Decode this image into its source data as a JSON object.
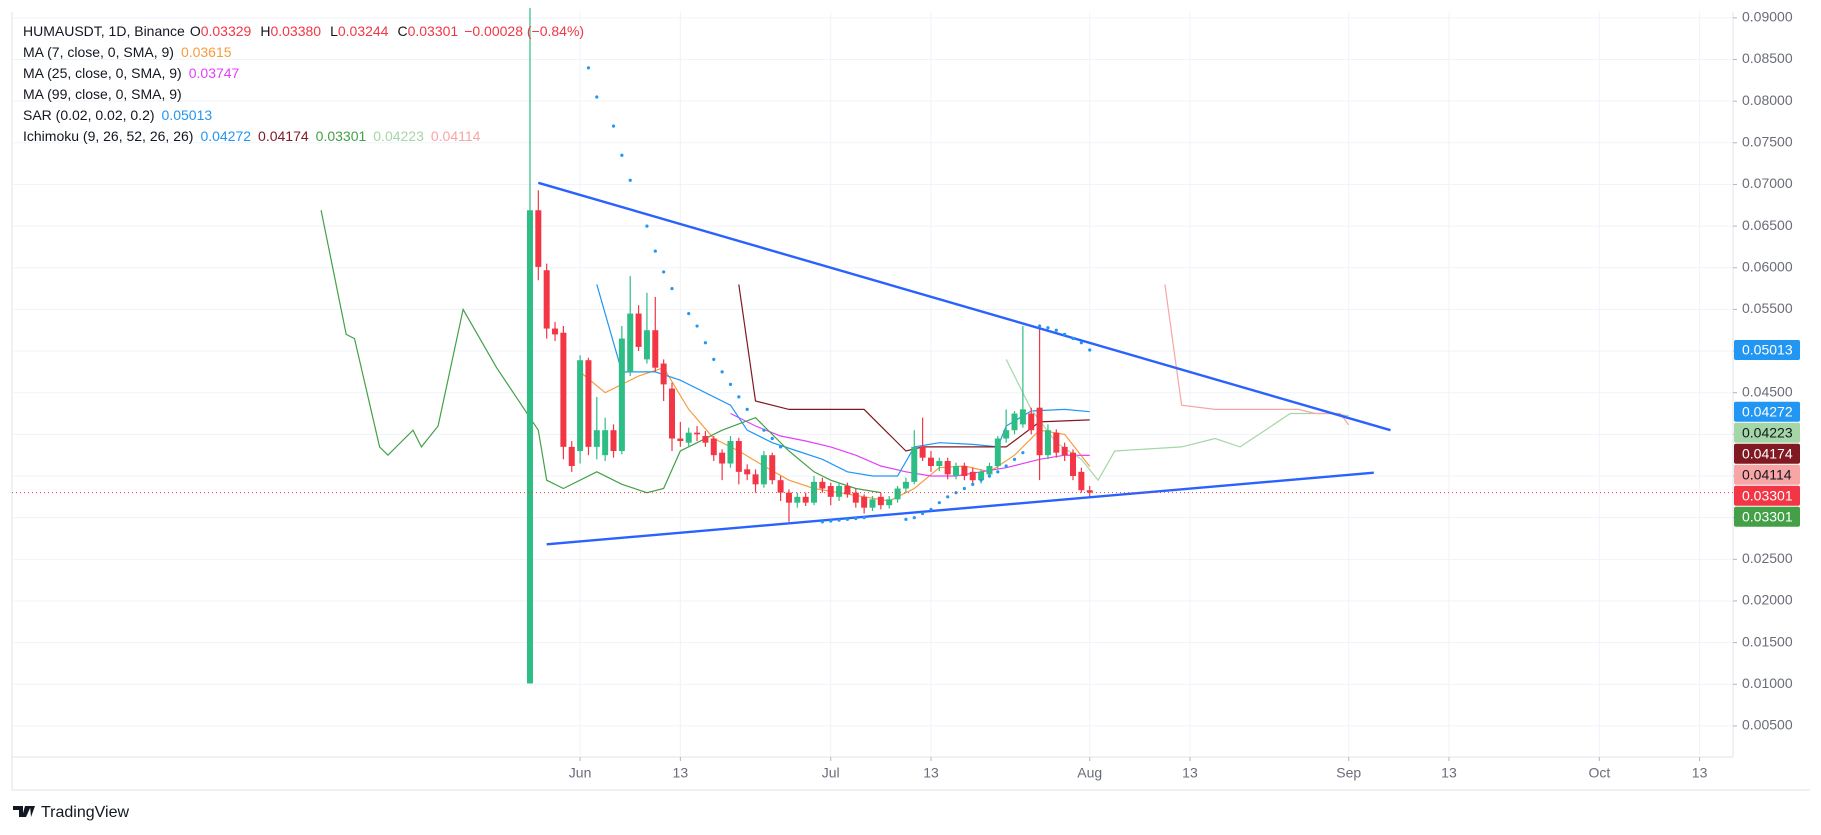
{
  "chart_data": {
    "type": "candlestick",
    "legend": {
      "symbol": "HUMAUSDT, 1D, Binance",
      "ohlc": [
        {
          "key": "O",
          "value": "0.03329"
        },
        {
          "key": "H",
          "value": "0.03380"
        },
        {
          "key": "L",
          "value": "0.03244"
        },
        {
          "key": "C",
          "value": "0.03301"
        }
      ],
      "change": "−0.00028 (−0.84%)",
      "value_color": "#f23645",
      "indicators": [
        {
          "name": "MA (7, close, 0, SMA, 9)",
          "values": [
            {
              "text": "0.03615",
              "color": "#f89c3c"
            }
          ]
        },
        {
          "name": "MA (25, close, 0, SMA, 9)",
          "values": [
            {
              "text": "0.03747",
              "color": "#e040fb"
            }
          ]
        },
        {
          "name": "MA (99, close, 0, SMA, 9)",
          "values": []
        },
        {
          "name": "SAR (0.02, 0.02, 0.2)",
          "values": [
            {
              "text": "0.05013",
              "color": "#2196f3"
            }
          ]
        },
        {
          "name": "Ichimoku (9, 26, 52, 26, 26)",
          "values": [
            {
              "text": "0.04272",
              "color": "#2196f3"
            },
            {
              "text": "0.04174",
              "color": "#801922"
            },
            {
              "text": "0.03301",
              "color": "#43a047"
            },
            {
              "text": "0.04223",
              "color": "#a5d6a7"
            },
            {
              "text": "0.04114",
              "color": "#f7a5a5"
            }
          ]
        }
      ]
    },
    "xlim": [
      "03-25",
      "10-17"
    ],
    "xticks": [
      {
        "value": "06-01",
        "label": "Jun"
      },
      {
        "value": "06-13",
        "label": "13"
      },
      {
        "value": "07-01",
        "label": "Jul"
      },
      {
        "value": "07-13",
        "label": "13"
      },
      {
        "value": "08-01",
        "label": "Aug"
      },
      {
        "value": "08-13",
        "label": "13"
      },
      {
        "value": "09-01",
        "label": "Sep"
      },
      {
        "value": "09-13",
        "label": "13"
      },
      {
        "value": "10-01",
        "label": "Oct"
      },
      {
        "value": "10-13",
        "label": "13"
      }
    ],
    "ylim": [
      0.00127,
      0.0907
    ],
    "yticks": [
      {
        "value": 0.005,
        "label": "0.00500"
      },
      {
        "value": 0.01,
        "label": "0.01000"
      },
      {
        "value": 0.015,
        "label": "0.01500"
      },
      {
        "value": 0.02,
        "label": "0.02000"
      },
      {
        "value": 0.025,
        "label": "0.02500"
      },
      {
        "value": 0.03,
        "label": "0.03000"
      },
      {
        "value": 0.035,
        "label": "0.03500"
      },
      {
        "value": 0.04,
        "label": "0.04000"
      },
      {
        "value": 0.045,
        "label": "0.04500"
      },
      {
        "value": 0.05,
        "label": "0.05000"
      },
      {
        "value": 0.055,
        "label": "0.05500"
      },
      {
        "value": 0.06,
        "label": "0.06000"
      },
      {
        "value": 0.065,
        "label": "0.06500"
      },
      {
        "value": 0.07,
        "label": "0.07000"
      },
      {
        "value": 0.075,
        "label": "0.07500"
      },
      {
        "value": 0.08,
        "label": "0.08000"
      },
      {
        "value": 0.085,
        "label": "0.08500"
      },
      {
        "value": 0.09,
        "label": "0.09000"
      }
    ],
    "grid": true,
    "up_color": "#2ebd85",
    "down_color": "#f23645",
    "candles": {
      "x": [
        "05-26",
        "05-27",
        "05-28",
        "05-29",
        "05-30",
        "05-31",
        "06-01",
        "06-02",
        "06-03",
        "06-04",
        "06-05",
        "06-06",
        "06-07",
        "06-08",
        "06-09",
        "06-10",
        "06-11",
        "06-12",
        "06-13",
        "06-14",
        "06-15",
        "06-16",
        "06-17",
        "06-18",
        "06-19",
        "06-20",
        "06-21",
        "06-22",
        "06-23",
        "06-24",
        "06-25",
        "06-26",
        "06-27",
        "06-28",
        "06-29",
        "06-30",
        "07-01",
        "07-02",
        "07-03",
        "07-04",
        "07-05",
        "07-06",
        "07-07",
        "07-08",
        "07-09",
        "07-10",
        "07-11",
        "07-12",
        "07-13",
        "07-14",
        "07-15",
        "07-16",
        "07-17",
        "07-18",
        "07-19",
        "07-20",
        "07-21",
        "07-22",
        "07-23",
        "07-24",
        "07-25",
        "07-26",
        "07-27",
        "07-28",
        "07-29",
        "07-30",
        "07-31",
        "08-01"
      ],
      "open": [
        0.0101,
        0.0669,
        0.0597,
        0.0527,
        0.0522,
        0.0385,
        0.038,
        0.0489,
        0.0385,
        0.0375,
        0.0405,
        0.038,
        0.0475,
        0.0545,
        0.049,
        0.0525,
        0.0485,
        0.0455,
        0.0395,
        0.039,
        0.0402,
        0.0398,
        0.0395,
        0.0378,
        0.0365,
        0.0392,
        0.0358,
        0.0352,
        0.034,
        0.0375,
        0.0345,
        0.033,
        0.0318,
        0.0325,
        0.0318,
        0.0343,
        0.0338,
        0.0325,
        0.0338,
        0.033,
        0.0325,
        0.0312,
        0.0325,
        0.0315,
        0.0322,
        0.0335,
        0.0343,
        0.0385,
        0.0372,
        0.0362,
        0.0368,
        0.035,
        0.0362,
        0.0355,
        0.0345,
        0.0352,
        0.0362,
        0.0395,
        0.0405,
        0.0412,
        0.0425,
        0.0432,
        0.0375,
        0.0402,
        0.0385,
        0.0378,
        0.0355,
        0.03329
      ],
      "high": [
        0.0912,
        0.0693,
        0.0605,
        0.0535,
        0.053,
        0.0392,
        0.0495,
        0.0492,
        0.0445,
        0.042,
        0.0412,
        0.053,
        0.059,
        0.0555,
        0.057,
        0.0565,
        0.049,
        0.0462,
        0.0415,
        0.0408,
        0.041,
        0.0404,
        0.0398,
        0.0382,
        0.0398,
        0.0396,
        0.0364,
        0.0358,
        0.038,
        0.0378,
        0.035,
        0.0334,
        0.033,
        0.033,
        0.035,
        0.0348,
        0.0342,
        0.0342,
        0.0342,
        0.0335,
        0.0328,
        0.0326,
        0.033,
        0.0326,
        0.0338,
        0.0348,
        0.0405,
        0.042,
        0.038,
        0.0372,
        0.0372,
        0.0366,
        0.0366,
        0.036,
        0.0358,
        0.0366,
        0.0398,
        0.043,
        0.0428,
        0.053,
        0.0432,
        0.0532,
        0.0412,
        0.0406,
        0.039,
        0.0382,
        0.036,
        0.0338
      ],
      "low": [
        0.0101,
        0.0585,
        0.0515,
        0.0512,
        0.037,
        0.0355,
        0.0365,
        0.0375,
        0.037,
        0.0368,
        0.0372,
        0.0376,
        0.047,
        0.05,
        0.0485,
        0.0475,
        0.044,
        0.038,
        0.0385,
        0.0386,
        0.0392,
        0.0385,
        0.0368,
        0.0345,
        0.036,
        0.034,
        0.0345,
        0.033,
        0.0336,
        0.034,
        0.032,
        0.0295,
        0.0312,
        0.0314,
        0.0315,
        0.033,
        0.0315,
        0.032,
        0.0324,
        0.0312,
        0.0305,
        0.0308,
        0.031,
        0.0311,
        0.0318,
        0.033,
        0.034,
        0.0368,
        0.0355,
        0.0356,
        0.0346,
        0.0346,
        0.0345,
        0.034,
        0.0341,
        0.0348,
        0.0358,
        0.039,
        0.04,
        0.0408,
        0.04,
        0.0345,
        0.037,
        0.0372,
        0.0368,
        0.0345,
        0.033,
        0.03244
      ],
      "close": [
        0.0669,
        0.0601,
        0.0527,
        0.052,
        0.0385,
        0.0362,
        0.0489,
        0.0385,
        0.0405,
        0.0405,
        0.038,
        0.0515,
        0.0545,
        0.0505,
        0.0525,
        0.048,
        0.046,
        0.0395,
        0.0392,
        0.0402,
        0.04,
        0.039,
        0.0375,
        0.0365,
        0.0392,
        0.0355,
        0.0352,
        0.034,
        0.0375,
        0.0345,
        0.033,
        0.0318,
        0.0325,
        0.0318,
        0.0343,
        0.0335,
        0.0325,
        0.0338,
        0.0328,
        0.0318,
        0.0312,
        0.0322,
        0.0315,
        0.0322,
        0.0335,
        0.0343,
        0.0385,
        0.0372,
        0.0362,
        0.0368,
        0.0352,
        0.0362,
        0.035,
        0.0345,
        0.0355,
        0.0362,
        0.0395,
        0.0405,
        0.0425,
        0.043,
        0.0405,
        0.0375,
        0.0405,
        0.0378,
        0.0375,
        0.035,
        0.0333,
        0.03301
      ]
    },
    "lines": [
      {
        "color": "#f89c3c",
        "width": 1,
        "x": [
          "06-01",
          "06-04",
          "06-08",
          "06-11",
          "06-14",
          "06-17",
          "06-20",
          "06-23",
          "06-26",
          "06-29",
          "07-02",
          "07-05",
          "07-08",
          "07-11",
          "07-14",
          "07-17",
          "07-20",
          "07-23",
          "07-26",
          "07-29",
          "08-01"
        ],
        "values": [
          0.0475,
          0.045,
          0.047,
          0.048,
          0.043,
          0.0395,
          0.038,
          0.0362,
          0.0345,
          0.0335,
          0.033,
          0.0325,
          0.032,
          0.0335,
          0.036,
          0.0362,
          0.0355,
          0.0375,
          0.0405,
          0.04,
          0.03615
        ]
      },
      {
        "color": "#e040fb",
        "width": 1,
        "x": [
          "06-19",
          "06-22",
          "06-25",
          "06-28",
          "07-01",
          "07-04",
          "07-07",
          "07-10",
          "07-13",
          "07-16",
          "07-19",
          "07-22",
          "07-26",
          "07-29",
          "08-01"
        ],
        "values": [
          0.0425,
          0.041,
          0.0398,
          0.0392,
          0.0385,
          0.0375,
          0.0362,
          0.0355,
          0.035,
          0.035,
          0.0355,
          0.036,
          0.037,
          0.0375,
          0.03747
        ]
      },
      {
        "color": "#2196f3",
        "width": 1,
        "x": [
          "06-03",
          "06-06",
          "06-10",
          "06-13",
          "06-16",
          "06-19",
          "06-21",
          "06-24",
          "06-27",
          "06-30",
          "07-03",
          "07-06",
          "07-09",
          "07-11",
          "07-14",
          "07-18",
          "07-21",
          "07-22",
          "07-25",
          "07-29",
          "08-01"
        ],
        "values": [
          0.058,
          0.0475,
          0.0475,
          0.0465,
          0.045,
          0.0435,
          0.0405,
          0.039,
          0.038,
          0.037,
          0.0355,
          0.035,
          0.035,
          0.0385,
          0.039,
          0.0388,
          0.0385,
          0.041,
          0.0428,
          0.043,
          0.04272
        ]
      },
      {
        "color": "#801922",
        "width": 1,
        "x": [
          "06-20",
          "06-22",
          "06-26",
          "07-05",
          "07-08",
          "07-10",
          "07-12",
          "07-22",
          "07-26",
          "08-01"
        ],
        "values": [
          0.058,
          0.044,
          0.043,
          0.043,
          0.04,
          0.038,
          0.0385,
          0.0385,
          0.0415,
          0.04174
        ]
      },
      {
        "color": "#43a047",
        "width": 1,
        "x": [
          "05-01",
          "05-04",
          "05-05",
          "05-08",
          "05-09",
          "05-12",
          "05-13",
          "05-15",
          "05-18",
          "05-22",
          "05-24",
          "05-27",
          "05-28",
          "05-30",
          "06-03",
          "06-06",
          "06-09",
          "06-11",
          "06-13",
          "06-15",
          "06-18",
          "06-22",
          "06-26",
          "06-29",
          "07-01",
          "07-04",
          "07-07"
        ],
        "values": [
          0.0669,
          0.052,
          0.0515,
          0.0385,
          0.0375,
          0.0405,
          0.0385,
          0.041,
          0.055,
          0.048,
          0.045,
          0.0405,
          0.0345,
          0.0335,
          0.0355,
          0.034,
          0.033,
          0.0335,
          0.038,
          0.039,
          0.0405,
          0.042,
          0.038,
          0.0355,
          0.0345,
          0.0335,
          0.03301
        ]
      },
      {
        "color": "#a5d6a7",
        "width": 1,
        "x": [
          "07-22",
          "07-25",
          "07-28",
          "07-31",
          "08-02",
          "08-04",
          "08-12",
          "08-16",
          "08-19",
          "08-22",
          "08-25",
          "08-30",
          "09-01"
        ],
        "values": [
          0.049,
          0.043,
          0.039,
          0.037,
          0.0345,
          0.038,
          0.0385,
          0.0395,
          0.0385,
          0.0405,
          0.0425,
          0.0425,
          0.04223
        ]
      },
      {
        "color": "#f7a5a5",
        "width": 1,
        "x": [
          "08-10",
          "08-12",
          "08-16",
          "08-26",
          "08-28",
          "08-31",
          "09-01"
        ],
        "values": [
          0.058,
          0.0435,
          0.043,
          0.043,
          0.0425,
          0.0425,
          0.04114
        ]
      },
      {
        "color": "#2962ff",
        "width": 2,
        "x": [
          "05-27",
          "09-06"
        ],
        "values": [
          0.0702,
          0.0405
        ]
      },
      {
        "color": "#2962ff",
        "width": 2,
        "x": [
          "05-28",
          "09-04"
        ],
        "values": [
          0.0268,
          0.0354
        ]
      }
    ],
    "sar": {
      "color": "#2196f3",
      "x": [
        "06-02",
        "06-03",
        "06-05",
        "06-06",
        "06-07",
        "06-09",
        "06-10",
        "06-11",
        "06-12",
        "06-14",
        "06-15",
        "06-16",
        "06-17",
        "06-18",
        "06-19",
        "06-20",
        "06-21",
        "06-23",
        "06-24",
        "06-25",
        "06-30",
        "07-01",
        "07-02",
        "07-03",
        "07-04",
        "07-05",
        "07-10",
        "07-11",
        "07-12",
        "07-13",
        "07-14",
        "07-15",
        "07-16",
        "07-17",
        "07-18",
        "07-19",
        "07-20",
        "07-21",
        "07-22",
        "07-23",
        "07-24",
        "07-26",
        "07-27",
        "07-28",
        "07-29",
        "07-30",
        "07-31",
        "08-01"
      ],
      "values": [
        0.084,
        0.0805,
        0.077,
        0.0735,
        0.0705,
        0.065,
        0.062,
        0.0595,
        0.0575,
        0.0545,
        0.053,
        0.051,
        0.049,
        0.0475,
        0.046,
        0.0445,
        0.043,
        0.0405,
        0.0395,
        0.0385,
        0.0295,
        0.0296,
        0.0297,
        0.0298,
        0.0299,
        0.03,
        0.0298,
        0.03,
        0.0305,
        0.031,
        0.0318,
        0.0325,
        0.033,
        0.0335,
        0.034,
        0.0345,
        0.035,
        0.0355,
        0.0362,
        0.037,
        0.0378,
        0.053,
        0.0528,
        0.0525,
        0.052,
        0.0515,
        0.051,
        0.05013
      ]
    },
    "price_labels": [
      {
        "value": 0.05013,
        "label": "0.05013",
        "color": "#2196f3",
        "text_color": "#ffffff"
      },
      {
        "value": 0.04272,
        "label": "0.04272",
        "color": "#2196f3",
        "text_color": "#ffffff"
      },
      {
        "value": 0.04223,
        "label": "0.04223",
        "color": "#a5d6a7",
        "text_color": "#131722"
      },
      {
        "value": 0.04174,
        "label": "0.04174",
        "color": "#801922",
        "text_color": "#ffffff"
      },
      {
        "value": 0.04114,
        "label": "0.04114",
        "color": "#f7a5a5",
        "text_color": "#131722"
      },
      {
        "value": 0.03301,
        "label": "0.03301",
        "color": "#f23645",
        "text_color": "#ffffff"
      },
      {
        "value": 0.03301,
        "label": "0.03301",
        "color": "#43a047",
        "text_color": "#ffffff"
      }
    ]
  },
  "footer": {
    "brand": "TradingView"
  }
}
